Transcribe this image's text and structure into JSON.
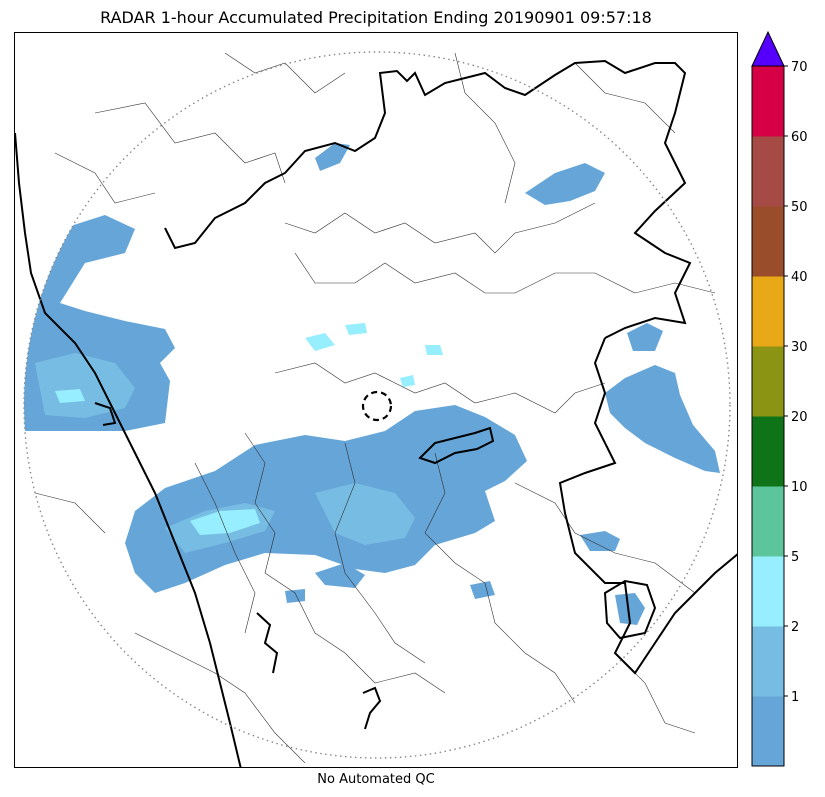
{
  "title": "RADAR 1-hour Accumulated Precipitation Ending 20190901 09:57:18",
  "footer": "No Automated QC",
  "colorbar": {
    "tick_labels": [
      "1",
      "2",
      "5",
      "10",
      "20",
      "30",
      "40",
      "50",
      "60",
      "70"
    ],
    "bins": [
      {
        "color": "#65A5D8"
      },
      {
        "color": "#77BDE3"
      },
      {
        "color": "#96EEFF"
      },
      {
        "color": "#5DC59B"
      },
      {
        "color": "#0F7317"
      },
      {
        "color": "#8B9413"
      },
      {
        "color": "#E8A818"
      },
      {
        "color": "#9A4D2A"
      },
      {
        "color": "#A64A46"
      },
      {
        "color": "#D50046"
      }
    ],
    "extend_color": "#5500FF"
  },
  "map": {
    "range_ring": "dotted",
    "precip_main": "#65A5D8",
    "precip_light": "#77BDE3",
    "precip_cyan": "#96EEFF"
  }
}
